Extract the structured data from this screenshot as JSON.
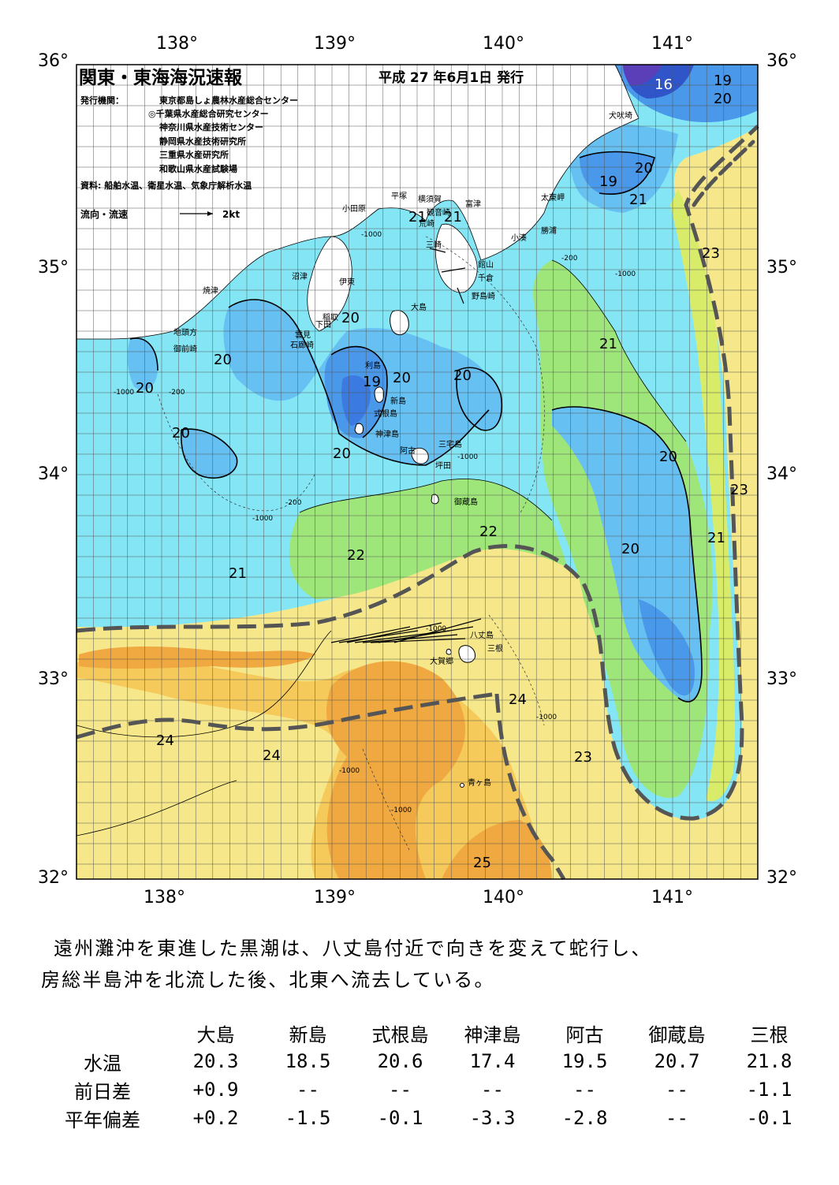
{
  "header": {
    "title": "関東・東海海況速報",
    "issue_date": "平成 27 年6月1日 発行",
    "publisher_label": "発行機関：",
    "publishers": [
      "東京都島しょ農林水産総合センター",
      "◎千葉県水産総合研究センター",
      "神奈川県水産技術センター",
      "静岡県水産技術研究所",
      "三重県水産研究所",
      "和歌山県水産試験場"
    ],
    "sources": "資料: 船舶水温、衛星水温、気象庁解析水温",
    "current_legend_label": "流向・流速",
    "current_legend_scale": "2kt"
  },
  "axes": {
    "lon_labels": [
      "138°",
      "139°",
      "140°",
      "141°"
    ],
    "lat_labels": [
      "36°",
      "35°",
      "34°",
      "33°",
      "32°"
    ]
  },
  "isotherm_labels": [
    "16",
    "19",
    "20",
    "19",
    "20",
    "21",
    "23",
    "21",
    "20",
    "21",
    "20",
    "20",
    "19",
    "20",
    "20",
    "20",
    "20",
    "20",
    "20",
    "23",
    "22",
    "21",
    "21",
    "22",
    "23",
    "20",
    "20",
    "21",
    "24",
    "24",
    "24",
    "23",
    "25"
  ],
  "place_names": [
    "犬吠埼",
    "太東岬",
    "勝浦",
    "小湊",
    "富津",
    "観音崎",
    "横須賀",
    "平塚",
    "小田原",
    "荒崎",
    "三崎",
    "館山",
    "千倉",
    "野島崎",
    "大島",
    "稲取",
    "下田",
    "雲見",
    "石廊崎",
    "伊東",
    "沼津",
    "焼津",
    "地頭方",
    "御前崎",
    "利島",
    "新島",
    "式根島",
    "神津島",
    "三宅島",
    "阿古",
    "坪田",
    "御蔵島",
    "八丈島",
    "三根",
    "大賀郷",
    "青ヶ島"
  ],
  "depth_contours": [
    "-200",
    "-1000"
  ],
  "colors": {
    "t16": "#5a3fb8",
    "t17": "#2f55c8",
    "t18": "#3b7ae0",
    "t19": "#4a98ea",
    "t20": "#66c0f2",
    "t21": "#84e6f5",
    "t22": "#8ef0c8",
    "t23": "#9ee67a",
    "t23b": "#d8ec6a",
    "t24": "#f6e88a",
    "t24b": "#f5c95a",
    "t25": "#f0a840",
    "land": "#ffffff",
    "kuroshio_axis": "#555555"
  },
  "description": [
    "遠州灘沖を東進した黒潮は、八丈島付近で向きを変えて蛇行し、",
    "房総半島沖を北流した後、北東へ流去している。"
  ],
  "table": {
    "columns": [
      "大島",
      "新島",
      "式根島",
      "神津島",
      "阿古",
      "御蔵島",
      "三根"
    ],
    "rows": [
      {
        "label": "水温",
        "values": [
          "20.3",
          "18.5",
          "20.6",
          "17.4",
          "19.5",
          "20.7",
          "21.8"
        ]
      },
      {
        "label": "前日差",
        "values": [
          "+0.9",
          "--",
          "--",
          "--",
          "--",
          "--",
          "-1.1"
        ]
      },
      {
        "label": "平年偏差",
        "values": [
          "+0.2",
          "-1.5",
          "-0.1",
          "-3.3",
          "-2.8",
          "--",
          "-0.1"
        ]
      }
    ]
  }
}
